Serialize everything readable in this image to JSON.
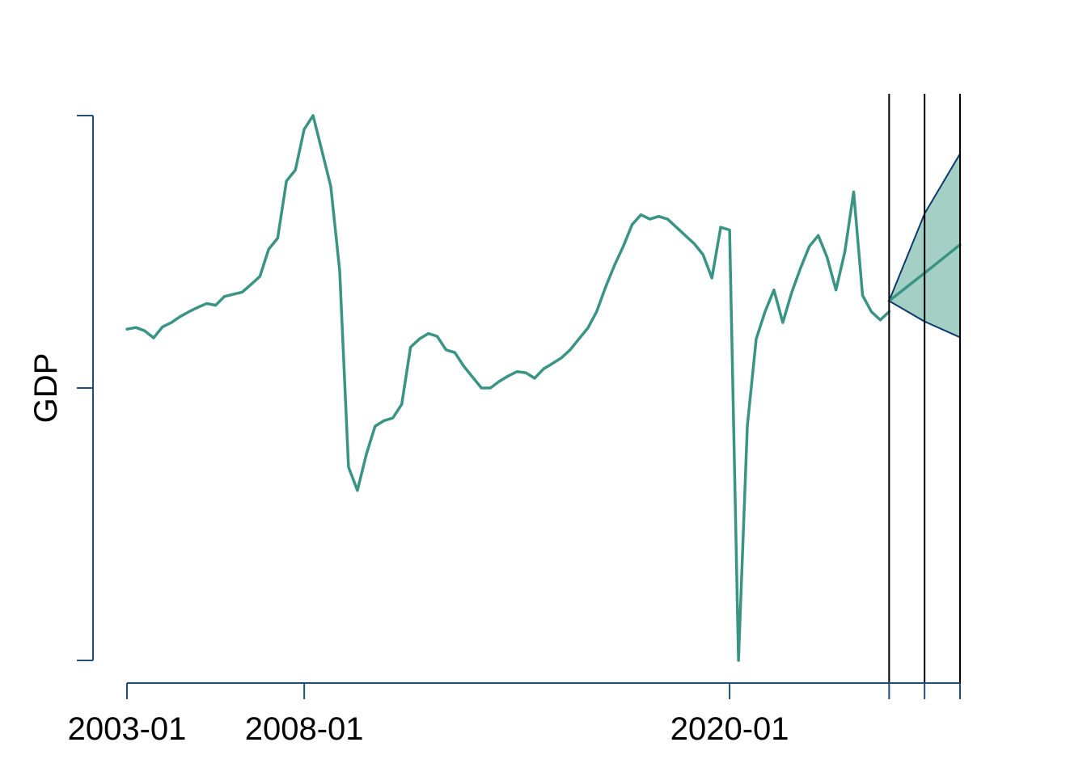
{
  "chart_data": {
    "type": "line",
    "title": "",
    "xlabel": "",
    "ylabel": "GDP",
    "x_unit": "month",
    "x_tick_labels": [
      "2003-01",
      "2008-01",
      "2020-01"
    ],
    "x_tick_values": [
      "2003-01",
      "2008-01",
      "2020-01",
      "2024-07",
      "2025-07",
      "2026-07"
    ],
    "forecast_markers": [
      "2024-07",
      "2025-07",
      "2026-07"
    ],
    "y_ticks_unlabeled": 3,
    "grid": false,
    "legend": "none",
    "series": [
      {
        "values": [
          {
            "x": "2003-01",
            "y": 0.608
          },
          {
            "x": "2003-04",
            "y": 0.611
          },
          {
            "x": "2003-07",
            "y": 0.605
          },
          {
            "x": "2003-10",
            "y": 0.592
          },
          {
            "x": "2004-01",
            "y": 0.612
          },
          {
            "x": "2004-04",
            "y": 0.62
          },
          {
            "x": "2004-07",
            "y": 0.631
          },
          {
            "x": "2004-10",
            "y": 0.64
          },
          {
            "x": "2005-01",
            "y": 0.648
          },
          {
            "x": "2005-04",
            "y": 0.655
          },
          {
            "x": "2005-07",
            "y": 0.652
          },
          {
            "x": "2005-10",
            "y": 0.668
          },
          {
            "x": "2006-01",
            "y": 0.672
          },
          {
            "x": "2006-04",
            "y": 0.676
          },
          {
            "x": "2006-07",
            "y": 0.69
          },
          {
            "x": "2006-10",
            "y": 0.705
          },
          {
            "x": "2007-01",
            "y": 0.755
          },
          {
            "x": "2007-04",
            "y": 0.775
          },
          {
            "x": "2007-07",
            "y": 0.88
          },
          {
            "x": "2007-10",
            "y": 0.9
          },
          {
            "x": "2008-01",
            "y": 0.975
          },
          {
            "x": "2008-04",
            "y": 1.0
          },
          {
            "x": "2008-07",
            "y": 0.935
          },
          {
            "x": "2008-10",
            "y": 0.87
          },
          {
            "x": "2009-01",
            "y": 0.715
          },
          {
            "x": "2009-04",
            "y": 0.355
          },
          {
            "x": "2009-07",
            "y": 0.312
          },
          {
            "x": "2009-10",
            "y": 0.378
          },
          {
            "x": "2010-01",
            "y": 0.43
          },
          {
            "x": "2010-04",
            "y": 0.44
          },
          {
            "x": "2010-07",
            "y": 0.445
          },
          {
            "x": "2010-10",
            "y": 0.47
          },
          {
            "x": "2011-01",
            "y": 0.575
          },
          {
            "x": "2011-04",
            "y": 0.59
          },
          {
            "x": "2011-07",
            "y": 0.6
          },
          {
            "x": "2011-10",
            "y": 0.595
          },
          {
            "x": "2012-01",
            "y": 0.57
          },
          {
            "x": "2012-04",
            "y": 0.565
          },
          {
            "x": "2012-07",
            "y": 0.54
          },
          {
            "x": "2012-10",
            "y": 0.52
          },
          {
            "x": "2013-01",
            "y": 0.5
          },
          {
            "x": "2013-04",
            "y": 0.5
          },
          {
            "x": "2013-07",
            "y": 0.512
          },
          {
            "x": "2013-10",
            "y": 0.522
          },
          {
            "x": "2014-01",
            "y": 0.53
          },
          {
            "x": "2014-04",
            "y": 0.528
          },
          {
            "x": "2014-07",
            "y": 0.518
          },
          {
            "x": "2014-10",
            "y": 0.535
          },
          {
            "x": "2015-01",
            "y": 0.545
          },
          {
            "x": "2015-04",
            "y": 0.555
          },
          {
            "x": "2015-07",
            "y": 0.57
          },
          {
            "x": "2015-10",
            "y": 0.59
          },
          {
            "x": "2016-01",
            "y": 0.61
          },
          {
            "x": "2016-04",
            "y": 0.64
          },
          {
            "x": "2016-07",
            "y": 0.685
          },
          {
            "x": "2016-10",
            "y": 0.725
          },
          {
            "x": "2017-01",
            "y": 0.76
          },
          {
            "x": "2017-04",
            "y": 0.8
          },
          {
            "x": "2017-07",
            "y": 0.818
          },
          {
            "x": "2017-10",
            "y": 0.81
          },
          {
            "x": "2018-01",
            "y": 0.815
          },
          {
            "x": "2018-04",
            "y": 0.81
          },
          {
            "x": "2018-07",
            "y": 0.795
          },
          {
            "x": "2018-10",
            "y": 0.78
          },
          {
            "x": "2019-01",
            "y": 0.765
          },
          {
            "x": "2019-04",
            "y": 0.745
          },
          {
            "x": "2019-07",
            "y": 0.702
          },
          {
            "x": "2019-10",
            "y": 0.795
          },
          {
            "x": "2020-01",
            "y": 0.79
          },
          {
            "x": "2020-04",
            "y": 0.0
          },
          {
            "x": "2020-07",
            "y": 0.43
          },
          {
            "x": "2020-10",
            "y": 0.59
          },
          {
            "x": "2021-01",
            "y": 0.64
          },
          {
            "x": "2021-04",
            "y": 0.68
          },
          {
            "x": "2021-07",
            "y": 0.62
          },
          {
            "x": "2021-10",
            "y": 0.675
          },
          {
            "x": "2022-01",
            "y": 0.72
          },
          {
            "x": "2022-04",
            "y": 0.76
          },
          {
            "x": "2022-07",
            "y": 0.78
          },
          {
            "x": "2022-10",
            "y": 0.74
          },
          {
            "x": "2023-01",
            "y": 0.68
          },
          {
            "x": "2023-04",
            "y": 0.75
          },
          {
            "x": "2023-07",
            "y": 0.86
          },
          {
            "x": "2023-10",
            "y": 0.67
          },
          {
            "x": "2024-01",
            "y": 0.64
          },
          {
            "x": "2024-04",
            "y": 0.625
          },
          {
            "x": "2024-07",
            "y": 0.64
          }
        ]
      },
      {
        "values": [
          {
            "x": "2024-07",
            "y": 0.66
          },
          {
            "x": "2025-07",
            "y": 0.711
          },
          {
            "x": "2026-07",
            "y": 0.763
          }
        ]
      }
    ],
    "forecast_interval": {
      "upper": [
        {
          "x": "2024-07",
          "y": 0.66
        },
        {
          "x": "2025-07",
          "y": 0.82
        },
        {
          "x": "2026-07",
          "y": 0.93
        }
      ],
      "lower": [
        {
          "x": "2024-07",
          "y": 0.66
        },
        {
          "x": "2025-07",
          "y": 0.622
        },
        {
          "x": "2026-07",
          "y": 0.593
        }
      ]
    },
    "colors": {
      "series": "#3a9484",
      "forecast": "#3a9484",
      "band_fill": "#a4cfc4",
      "band_edge": "#0b3a6e",
      "axis": "#1f4e79",
      "marker_line": "#000000"
    }
  }
}
